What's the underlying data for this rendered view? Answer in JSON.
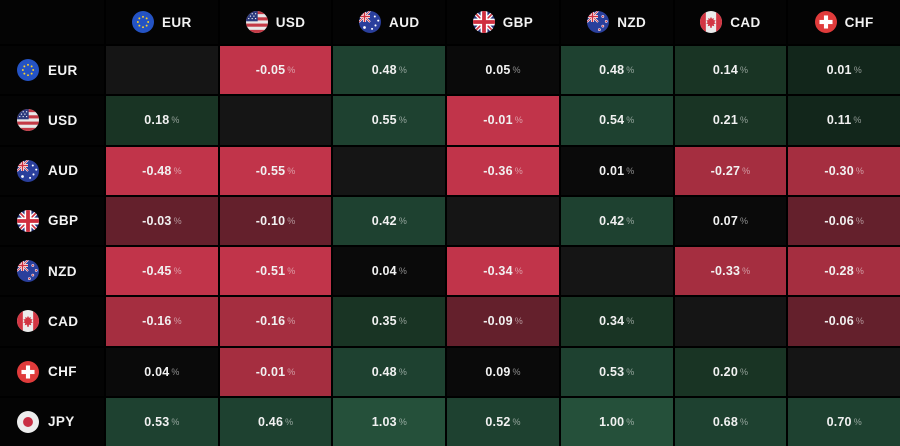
{
  "unit": "%",
  "palette": {
    "self": "#151515",
    "k": "#0a0a0a",
    "g1": "#12261b",
    "g2": "#193424",
    "g3": "#1e4130",
    "g4": "#25503a",
    "r1": "#64202c",
    "r2": "#a52e40",
    "r3": "#c1344a"
  },
  "columns": [
    {
      "code": "EUR",
      "flag": "eu"
    },
    {
      "code": "USD",
      "flag": "us"
    },
    {
      "code": "AUD",
      "flag": "au"
    },
    {
      "code": "GBP",
      "flag": "gb"
    },
    {
      "code": "NZD",
      "flag": "nz"
    },
    {
      "code": "CAD",
      "flag": "ca"
    },
    {
      "code": "CHF",
      "flag": "ch"
    }
  ],
  "rows": [
    {
      "code": "EUR",
      "flag": "eu",
      "cells": [
        {
          "v": "",
          "c": "self"
        },
        {
          "v": "-0.05",
          "c": "r3"
        },
        {
          "v": "0.48",
          "c": "g3"
        },
        {
          "v": "0.05",
          "c": "k"
        },
        {
          "v": "0.48",
          "c": "g3"
        },
        {
          "v": "0.14",
          "c": "g2"
        },
        {
          "v": "0.01",
          "c": "g1"
        }
      ]
    },
    {
      "code": "USD",
      "flag": "us",
      "cells": [
        {
          "v": "0.18",
          "c": "g2"
        },
        {
          "v": "",
          "c": "self"
        },
        {
          "v": "0.55",
          "c": "g3"
        },
        {
          "v": "-0.01",
          "c": "r3"
        },
        {
          "v": "0.54",
          "c": "g3"
        },
        {
          "v": "0.21",
          "c": "g2"
        },
        {
          "v": "0.11",
          "c": "g1"
        }
      ]
    },
    {
      "code": "AUD",
      "flag": "au",
      "cells": [
        {
          "v": "-0.48",
          "c": "r3"
        },
        {
          "v": "-0.55",
          "c": "r3"
        },
        {
          "v": "",
          "c": "self"
        },
        {
          "v": "-0.36",
          "c": "r3"
        },
        {
          "v": "0.01",
          "c": "k"
        },
        {
          "v": "-0.27",
          "c": "r2"
        },
        {
          "v": "-0.30",
          "c": "r2"
        }
      ]
    },
    {
      "code": "GBP",
      "flag": "gb",
      "cells": [
        {
          "v": "-0.03",
          "c": "r1"
        },
        {
          "v": "-0.10",
          "c": "r1"
        },
        {
          "v": "0.42",
          "c": "g3"
        },
        {
          "v": "",
          "c": "self"
        },
        {
          "v": "0.42",
          "c": "g3"
        },
        {
          "v": "0.07",
          "c": "k"
        },
        {
          "v": "-0.06",
          "c": "r1"
        }
      ]
    },
    {
      "code": "NZD",
      "flag": "nz",
      "cells": [
        {
          "v": "-0.45",
          "c": "r3"
        },
        {
          "v": "-0.51",
          "c": "r3"
        },
        {
          "v": "0.04",
          "c": "k"
        },
        {
          "v": "-0.34",
          "c": "r3"
        },
        {
          "v": "",
          "c": "self"
        },
        {
          "v": "-0.33",
          "c": "r2"
        },
        {
          "v": "-0.28",
          "c": "r2"
        }
      ]
    },
    {
      "code": "CAD",
      "flag": "ca",
      "cells": [
        {
          "v": "-0.16",
          "c": "r2"
        },
        {
          "v": "-0.16",
          "c": "r2"
        },
        {
          "v": "0.35",
          "c": "g2"
        },
        {
          "v": "-0.09",
          "c": "r1"
        },
        {
          "v": "0.34",
          "c": "g2"
        },
        {
          "v": "",
          "c": "self"
        },
        {
          "v": "-0.06",
          "c": "r1"
        }
      ]
    },
    {
      "code": "CHF",
      "flag": "ch",
      "cells": [
        {
          "v": "0.04",
          "c": "k"
        },
        {
          "v": "-0.01",
          "c": "r2"
        },
        {
          "v": "0.48",
          "c": "g3"
        },
        {
          "v": "0.09",
          "c": "k"
        },
        {
          "v": "0.53",
          "c": "g3"
        },
        {
          "v": "0.20",
          "c": "g2"
        },
        {
          "v": "",
          "c": "self"
        }
      ]
    },
    {
      "code": "JPY",
      "flag": "jp",
      "cells": [
        {
          "v": "0.53",
          "c": "g3"
        },
        {
          "v": "0.46",
          "c": "g3"
        },
        {
          "v": "1.03",
          "c": "g4"
        },
        {
          "v": "0.52",
          "c": "g3"
        },
        {
          "v": "1.00",
          "c": "g4"
        },
        {
          "v": "0.68",
          "c": "g3"
        },
        {
          "v": "0.70",
          "c": "g3"
        }
      ]
    }
  ],
  "chart_data": {
    "type": "heatmap",
    "rows": [
      "EUR",
      "USD",
      "AUD",
      "GBP",
      "NZD",
      "CAD",
      "CHF",
      "JPY"
    ],
    "columns": [
      "EUR",
      "USD",
      "AUD",
      "GBP",
      "NZD",
      "CAD",
      "CHF"
    ],
    "unit": "%",
    "values": [
      [
        null,
        -0.05,
        0.48,
        0.05,
        0.48,
        0.14,
        0.01
      ],
      [
        0.18,
        null,
        0.55,
        -0.01,
        0.54,
        0.21,
        0.11
      ],
      [
        -0.48,
        -0.55,
        null,
        -0.36,
        0.01,
        -0.27,
        -0.3
      ],
      [
        -0.03,
        -0.1,
        0.42,
        null,
        0.42,
        0.07,
        -0.06
      ],
      [
        -0.45,
        -0.51,
        0.04,
        -0.34,
        null,
        -0.33,
        -0.28
      ],
      [
        -0.16,
        -0.16,
        0.35,
        -0.09,
        0.34,
        null,
        -0.06
      ],
      [
        0.04,
        -0.01,
        0.48,
        0.09,
        0.53,
        0.2,
        null
      ],
      [
        0.53,
        0.46,
        1.03,
        0.52,
        1.0,
        0.68,
        0.7
      ]
    ],
    "positive_color": "#1e4130",
    "negative_color": "#c1344a",
    "neutral_color": "#0a0a0a"
  }
}
